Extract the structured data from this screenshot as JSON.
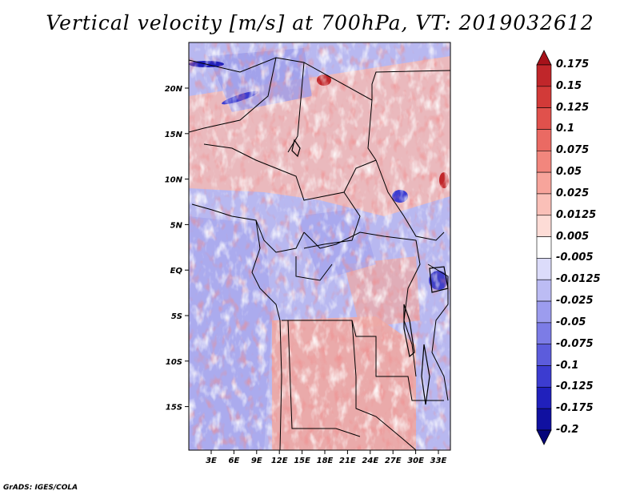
{
  "title": "Vertical velocity [m/s] at 700hPa, VT: 2019032612",
  "lat_ticks": [
    "20N",
    "15N",
    "10N",
    "5N",
    "EQ",
    "5S",
    "10S",
    "15S"
  ],
  "lon_ticks": [
    "3E",
    "6E",
    "9E",
    "12E",
    "15E",
    "18E",
    "21E",
    "24E",
    "27E",
    "30E",
    "33E"
  ],
  "colorbar": {
    "labels": [
      "0.175",
      "0.15",
      "0.125",
      "0.1",
      "0.075",
      "0.05",
      "0.025",
      "0.0125",
      "0.005",
      "-0.005",
      "-0.0125",
      "-0.025",
      "-0.05",
      "-0.075",
      "-0.1",
      "-0.125",
      "-0.175",
      "-0.2"
    ],
    "colors": [
      "#a6121a",
      "#c0262a",
      "#d23a38",
      "#e0514c",
      "#ea6a63",
      "#f2867d",
      "#f7a49b",
      "#fac0b8",
      "#fddcd6",
      "#ffffff",
      "#dcdcfa",
      "#bcbcf4",
      "#9c9cee",
      "#7c7ce6",
      "#5c5cdc",
      "#3c3cd0",
      "#2020bc",
      "#1010a0",
      "#06067a"
    ]
  },
  "footer": "GrADS: IGES/COLA"
}
